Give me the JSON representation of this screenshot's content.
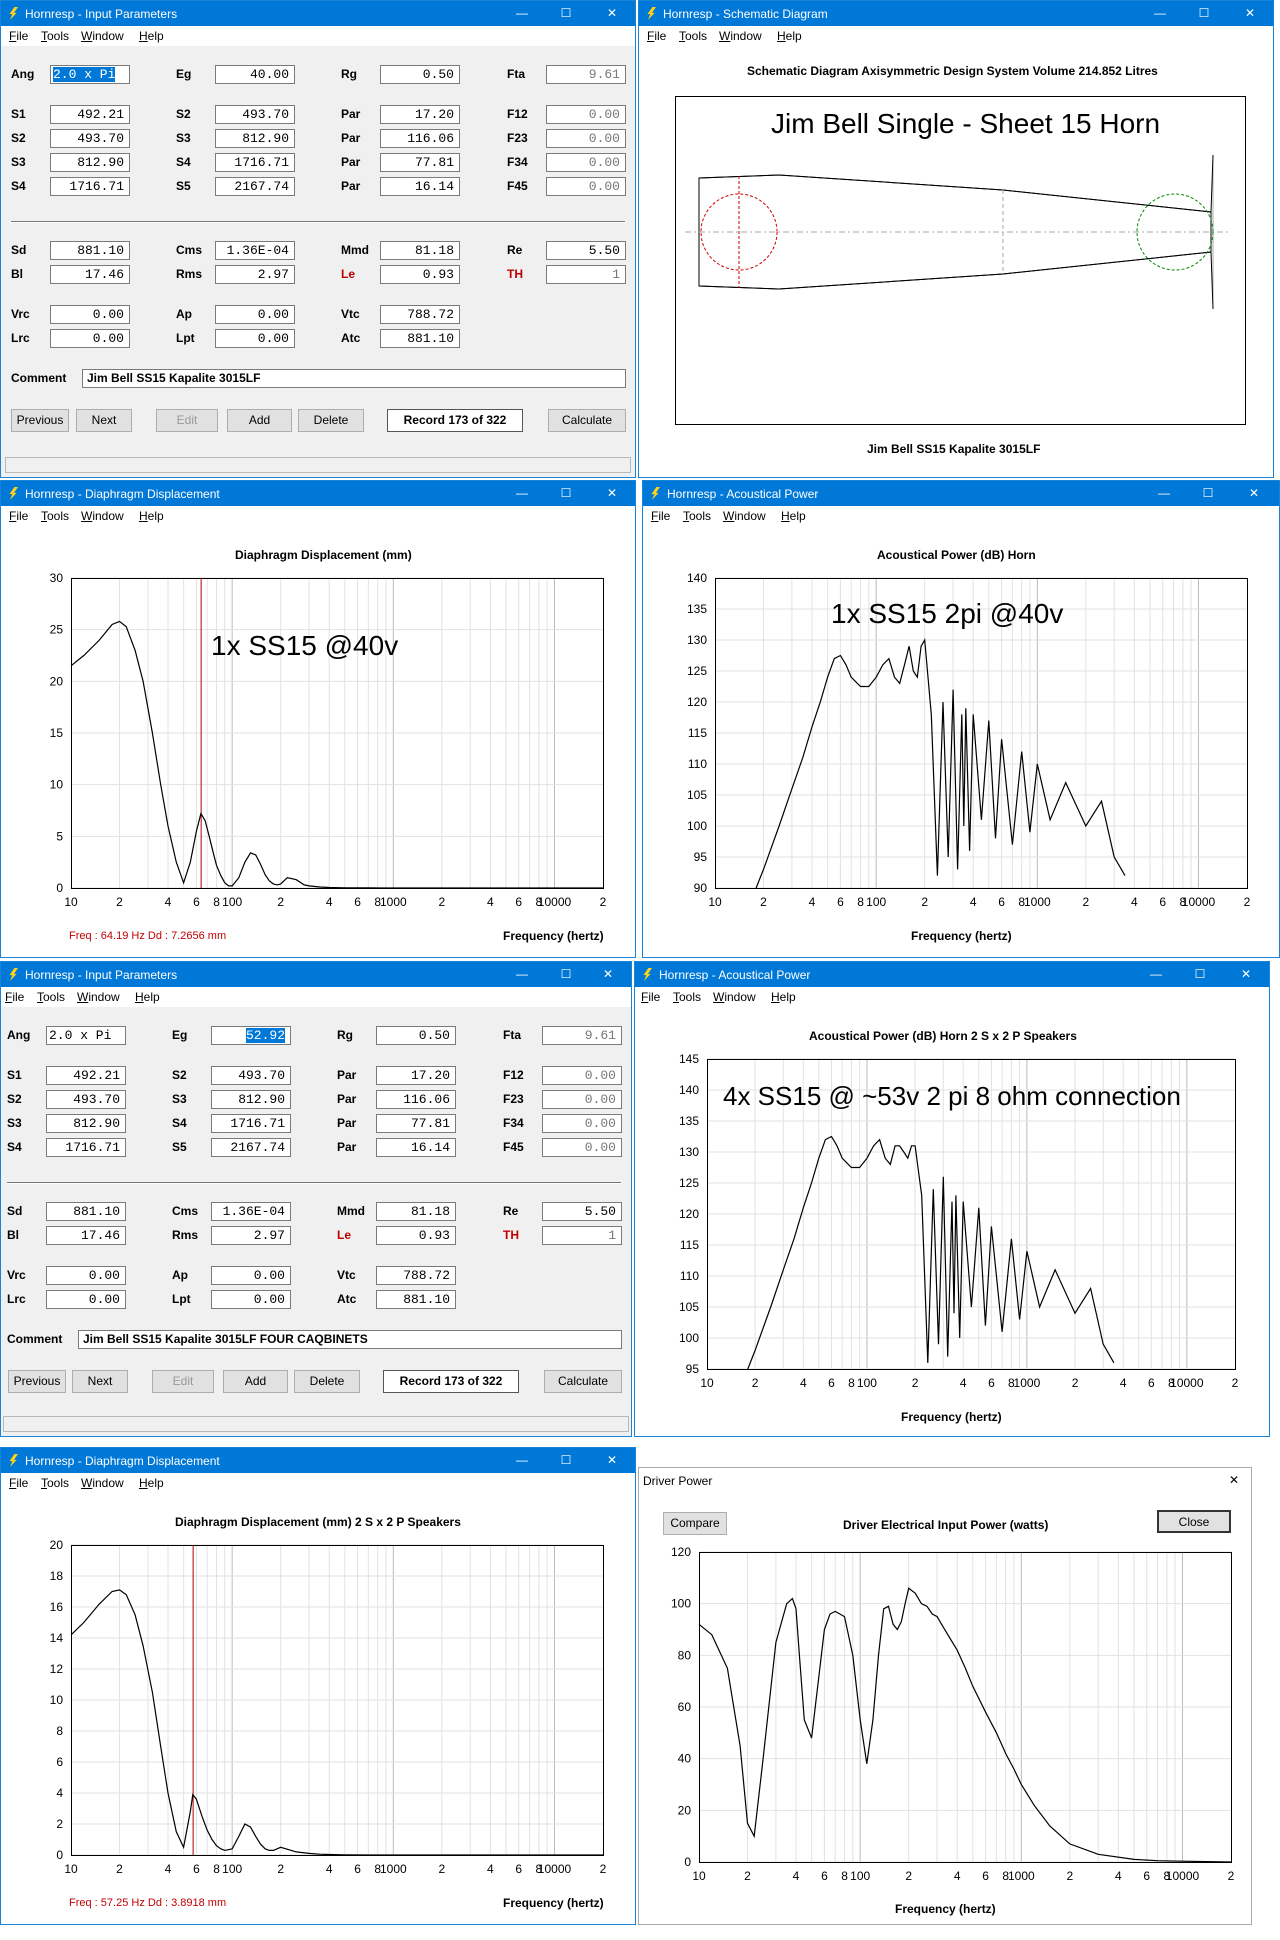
{
  "app_icon": "lightning-icon",
  "window_controls": {
    "minimize": "—",
    "maximize": "☐",
    "close": "✕"
  },
  "input1": {
    "title": "Hornresp - Input Parameters",
    "menu": [
      "File",
      "Tools",
      "Window",
      "Help"
    ],
    "labels": {
      "ang": "Ang",
      "eg": "Eg",
      "rg": "Rg",
      "fta": "Fta",
      "s1": "S1",
      "s2": "S2",
      "s3": "S3",
      "s4": "S4",
      "s5": "S5",
      "par": "Par",
      "f12": "F12",
      "f23": "F23",
      "f34": "F34",
      "f45": "F45",
      "sd": "Sd",
      "cms": "Cms",
      "mmd": "Mmd",
      "re": "Re",
      "bl": "Bl",
      "rms": "Rms",
      "le": "Le",
      "th": "TH",
      "vrc": "Vrc",
      "ap": "Ap",
      "vtc": "Vtc",
      "lrc": "Lrc",
      "lpt": "Lpt",
      "atc": "Atc",
      "comment": "Comment"
    },
    "values": {
      "ang": "2.0 x Pi",
      "eg": "40.00",
      "rg": "0.50",
      "fta": "9.61",
      "s1": "492.21",
      "s2": "493.70",
      "s3": "812.90",
      "s4": "1716.71",
      "s2b": "493.70",
      "s3b": "812.90",
      "s4b": "1716.71",
      "s5": "2167.74",
      "par1": "17.20",
      "par2": "116.06",
      "par3": "77.81",
      "par4": "16.14",
      "f12": "0.00",
      "f23": "0.00",
      "f34": "0.00",
      "f45": "0.00",
      "sd": "881.10",
      "cms": "1.36E-04",
      "mmd": "81.18",
      "re": "5.50",
      "bl": "17.46",
      "rms": "2.97",
      "le": "0.93",
      "th": "1",
      "vrc": "0.00",
      "ap": "0.00",
      "vtc": "788.72",
      "lrc": "0.00",
      "lpt": "0.00",
      "atc": "881.10",
      "comment": "Jim Bell  SS15  Kapalite 3015LF"
    },
    "buttons": {
      "previous": "Previous",
      "next": "Next",
      "edit": "Edit",
      "add": "Add",
      "delete": "Delete",
      "record": "Record 173 of 322",
      "calculate": "Calculate"
    }
  },
  "schematic": {
    "title": "Hornresp - Schematic Diagram",
    "menu": [
      "File",
      "Tools",
      "Window",
      "Help"
    ],
    "header": "Schematic Diagram   Axisymmetric Design   System Volume 214.852 Litres",
    "overlay": "Jim Bell Single - Sheet 15 Horn",
    "footer": "Jim Bell  SS15  Kapalite 3015LF"
  },
  "disp1": {
    "title": "Hornresp - Diaphragm Displacement",
    "menu": [
      "File",
      "Tools",
      "Window",
      "Help"
    ],
    "plot_title": "Diaphragm Displacement (mm)",
    "annotation": "1x SS15 @40v",
    "xlabel": "Frequency (hertz)",
    "readout": "Freq : 64.19 Hz   Dd : 7.2656 mm"
  },
  "acoustic1": {
    "title": "Hornresp - Acoustical Power",
    "menu": [
      "File",
      "Tools",
      "Window",
      "Help"
    ],
    "plot_title": "Acoustical Power (dB)   Horn",
    "annotation": "1x SS15 2pi @40v",
    "xlabel": "Frequency (hertz)"
  },
  "input2": {
    "title": "Hornresp - Input Parameters",
    "menu": [
      "File",
      "Tools",
      "Window",
      "Help"
    ],
    "values": {
      "eg": "52.92",
      "comment": "Jim Bell  SS15  Kapalite 3015LF FOUR CAQBINETS"
    }
  },
  "acoustic2": {
    "title": "Hornresp - Acoustical Power",
    "menu": [
      "File",
      "Tools",
      "Window",
      "Help"
    ],
    "plot_title": "Acoustical Power (dB)   Horn   2 S x 2 P Speakers",
    "annotation": "4x SS15 @ ~53v 2 pi 8 ohm connection",
    "xlabel": "Frequency (hertz)"
  },
  "disp2": {
    "title": "Hornresp - Diaphragm Displacement",
    "menu": [
      "File",
      "Tools",
      "Window",
      "Help"
    ],
    "plot_title": "Diaphragm Displacement (mm)   2 S x 2 P Speakers",
    "xlabel": "Frequency (hertz)",
    "readout": "Freq : 57.25 Hz   Dd : 3.8918 mm"
  },
  "driverpower": {
    "title": "Driver Power",
    "compare": "Compare",
    "close_btn": "Close",
    "plot_title": "Driver Electrical Input Power (watts)",
    "xlabel": "Frequency (hertz)"
  },
  "x_ticks": [
    "10",
    "2",
    "4",
    "6",
    "8",
    "100",
    "2",
    "4",
    "6",
    "8",
    "1000",
    "2",
    "4",
    "6",
    "8",
    "10000",
    "2"
  ],
  "chart_data": [
    {
      "type": "line",
      "title": "Diaphragm Displacement (mm)",
      "xlabel": "Frequency (hertz)",
      "xscale": "log",
      "xlim": [
        10,
        20000
      ],
      "ylim": [
        0,
        30
      ],
      "yticks": [
        0,
        5,
        10,
        15,
        20,
        25,
        30
      ],
      "marker_x": 64.19,
      "x": [
        10,
        12,
        15,
        18,
        20,
        22,
        25,
        28,
        32,
        36,
        40,
        45,
        50,
        55,
        60,
        64,
        68,
        72,
        76,
        80,
        85,
        90,
        95,
        100,
        110,
        120,
        130,
        140,
        150,
        160,
        170,
        180,
        190,
        200,
        220,
        250,
        280,
        300,
        350,
        400,
        500,
        700,
        1000,
        2000,
        5000,
        20000
      ],
      "y": [
        21.5,
        22.5,
        24,
        25.5,
        25.8,
        25.3,
        23,
        20,
        15,
        10,
        6,
        2.5,
        0.5,
        2.5,
        5.5,
        7.2,
        6.5,
        5,
        3.5,
        2.2,
        1.2,
        0.5,
        0.2,
        0.2,
        1,
        2.5,
        3.4,
        3.2,
        2.3,
        1.3,
        0.7,
        0.4,
        0.3,
        0.4,
        1,
        0.8,
        0.3,
        0.2,
        0.1,
        0.05,
        0.02,
        0.01,
        0,
        0,
        0,
        0
      ]
    },
    {
      "type": "line",
      "title": "Acoustical Power (dB)   Horn",
      "xlabel": "Frequency (hertz)",
      "xscale": "log",
      "xlim": [
        10,
        20000
      ],
      "ylim": [
        90,
        140
      ],
      "yticks": [
        90,
        95,
        100,
        105,
        110,
        115,
        120,
        125,
        130,
        135,
        140
      ],
      "x": [
        18,
        20,
        25,
        30,
        35,
        40,
        45,
        50,
        55,
        60,
        65,
        70,
        80,
        90,
        100,
        110,
        120,
        130,
        140,
        150,
        160,
        170,
        180,
        190,
        200,
        220,
        240,
        260,
        280,
        300,
        320,
        340,
        350,
        360,
        380,
        400,
        450,
        500,
        550,
        600,
        700,
        800,
        900,
        1000,
        1200,
        1500,
        2000,
        2500,
        3000,
        3500
      ],
      "y": [
        90,
        93,
        100,
        106,
        111,
        116,
        120,
        124,
        127,
        127.5,
        126,
        124,
        122.5,
        122.5,
        124,
        126,
        127,
        124,
        123,
        126,
        129,
        125,
        124,
        129,
        130,
        118,
        92,
        120,
        95,
        122,
        93,
        118,
        100,
        119,
        96,
        118,
        101,
        117,
        98,
        114,
        97,
        112,
        99,
        110,
        101,
        107,
        100,
        104,
        95,
        92
      ]
    },
    {
      "type": "line",
      "title": "Acoustical Power (dB)   Horn   2 S x 2 P Speakers",
      "xlabel": "Frequency (hertz)",
      "xscale": "log",
      "xlim": [
        10,
        20000
      ],
      "ylim": [
        95,
        145
      ],
      "yticks": [
        95,
        100,
        105,
        110,
        115,
        120,
        125,
        130,
        135,
        140,
        145
      ],
      "x": [
        18,
        20,
        25,
        30,
        35,
        40,
        45,
        50,
        55,
        60,
        65,
        70,
        80,
        90,
        100,
        110,
        120,
        130,
        140,
        150,
        160,
        170,
        180,
        190,
        200,
        220,
        240,
        260,
        280,
        300,
        320,
        340,
        350,
        360,
        380,
        400,
        450,
        500,
        550,
        600,
        700,
        800,
        900,
        1000,
        1200,
        1500,
        2000,
        2500,
        3000,
        3500
      ],
      "y": [
        95,
        98,
        105,
        111,
        116,
        121,
        125,
        129,
        132,
        132.5,
        131,
        129,
        127.5,
        127.5,
        129,
        131,
        132,
        129,
        128,
        131,
        131,
        130,
        129,
        131,
        131,
        123,
        96,
        124,
        99,
        126,
        97,
        122,
        104,
        123,
        100,
        122,
        105,
        121,
        102,
        118,
        101,
        116,
        103,
        114,
        105,
        111,
        104,
        108,
        99,
        96
      ]
    },
    {
      "type": "line",
      "title": "Diaphragm Displacement (mm)   2 S x 2 P Speakers",
      "xlabel": "Frequency (hertz)",
      "xscale": "log",
      "xlim": [
        10,
        20000
      ],
      "ylim": [
        0,
        20
      ],
      "yticks": [
        0,
        2,
        4,
        6,
        8,
        10,
        12,
        14,
        16,
        18,
        20
      ],
      "marker_x": 57.25,
      "x": [
        10,
        12,
        15,
        18,
        20,
        22,
        25,
        28,
        32,
        36,
        40,
        45,
        50,
        55,
        57,
        60,
        65,
        70,
        75,
        80,
        85,
        90,
        100,
        110,
        120,
        130,
        140,
        150,
        160,
        170,
        180,
        200,
        250,
        300,
        350,
        400,
        500,
        700,
        1000,
        2000,
        5000,
        20000
      ],
      "y": [
        14.2,
        15,
        16.2,
        17,
        17.1,
        16.8,
        15.5,
        13.5,
        10.5,
        7,
        4,
        1.5,
        0.5,
        2.8,
        3.9,
        3.6,
        2.5,
        1.6,
        1,
        0.6,
        0.4,
        0.3,
        0.4,
        1.2,
        2,
        1.8,
        1.2,
        0.7,
        0.4,
        0.3,
        0.3,
        0.5,
        0.2,
        0.1,
        0.05,
        0.03,
        0.01,
        0,
        0,
        0,
        0,
        0
      ]
    },
    {
      "type": "line",
      "title": "Driver Electrical Input Power (watts)",
      "xlabel": "Frequency (hertz)",
      "xscale": "log",
      "xlim": [
        10,
        20000
      ],
      "ylim": [
        0,
        120
      ],
      "yticks": [
        0,
        20,
        40,
        60,
        80,
        100,
        120
      ],
      "x": [
        10,
        12,
        15,
        18,
        20,
        22,
        25,
        30,
        35,
        38,
        40,
        42,
        45,
        50,
        55,
        60,
        65,
        70,
        80,
        90,
        100,
        110,
        120,
        130,
        140,
        150,
        160,
        170,
        180,
        190,
        200,
        220,
        240,
        260,
        280,
        300,
        320,
        350,
        400,
        450,
        500,
        600,
        700,
        800,
        900,
        1000,
        1200,
        1500,
        2000,
        3000,
        5000,
        7000,
        10000,
        20000
      ],
      "y": [
        92,
        88,
        75,
        45,
        15,
        10,
        40,
        85,
        100,
        102,
        98,
        80,
        55,
        48,
        70,
        90,
        96,
        97,
        95,
        80,
        55,
        38,
        55,
        80,
        98,
        99,
        92,
        90,
        93,
        100,
        106,
        104,
        100,
        99,
        96,
        95,
        92,
        88,
        82,
        75,
        68,
        58,
        50,
        42,
        36,
        30,
        22,
        14,
        7,
        3,
        1,
        0.5,
        0.3,
        0
      ]
    }
  ]
}
